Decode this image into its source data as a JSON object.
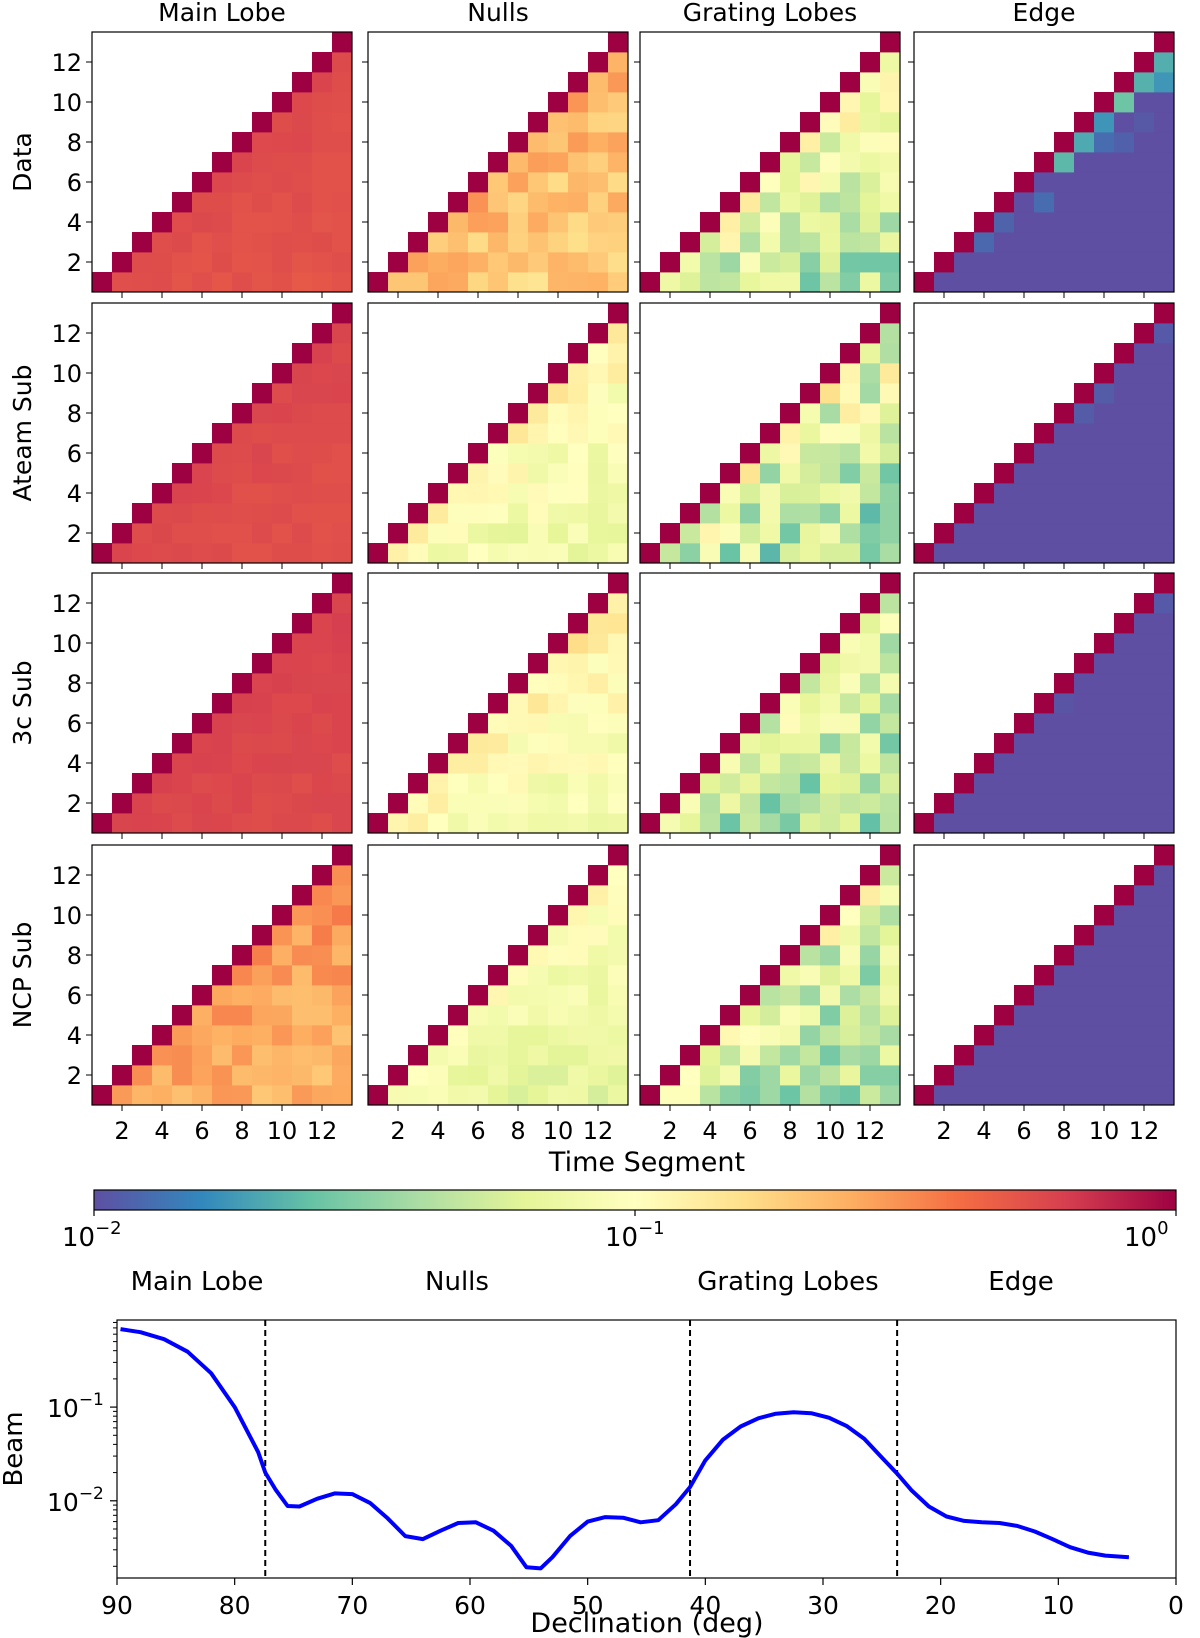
{
  "chart_data": [
    {
      "type": "heatmap",
      "title": "",
      "column_titles": [
        "Main Lobe",
        "Nulls",
        "Grating Lobes",
        "Edge"
      ],
      "row_labels": [
        "Data",
        "Ateam Sub",
        "3c Sub",
        "NCP Sub"
      ],
      "xlabel": "Time Segment",
      "ylabel": "",
      "x_ticks": [
        "2",
        "4",
        "6",
        "8",
        "10",
        "12"
      ],
      "y_ticks": [
        "2",
        "4",
        "6",
        "8",
        "10",
        "12"
      ],
      "grid_size": 13,
      "layout": "upper triangle: column index >= row index, diagonal cells saturated at 1",
      "panels_log10": [
        [
          {
            "base": -0.22,
            "slope": 0.02,
            "noise": 0.02
          },
          {
            "base": -0.55,
            "slope": 0.05,
            "noise": 0.12
          },
          {
            "base": -0.75,
            "slope": 0.18,
            "noise": 0.25
          },
          {
            "base": -1.1,
            "slope": 0.55,
            "noise": 0.3
          }
        ],
        [
          {
            "base": -0.22,
            "slope": 0.015,
            "noise": 0.02
          },
          {
            "base": -0.85,
            "slope": 0.08,
            "noise": 0.12
          },
          {
            "base": -0.95,
            "slope": 0.12,
            "noise": 0.3
          },
          {
            "base": -1.55,
            "slope": 0.4,
            "noise": 0.1
          }
        ],
        [
          {
            "base": -0.2,
            "slope": 0.015,
            "noise": 0.02
          },
          {
            "base": -0.8,
            "slope": 0.08,
            "noise": 0.1
          },
          {
            "base": -1.0,
            "slope": 0.12,
            "noise": 0.25
          },
          {
            "base": -1.6,
            "slope": 0.35,
            "noise": 0.08
          }
        ],
        [
          {
            "base": -0.45,
            "slope": 0.05,
            "noise": 0.1
          },
          {
            "base": -0.9,
            "slope": 0.08,
            "noise": 0.08
          },
          {
            "base": -1.0,
            "slope": 0.12,
            "noise": 0.25
          },
          {
            "base": -1.7,
            "slope": 0.35,
            "noise": 0.06
          }
        ]
      ],
      "colorbar": {
        "colormap": "Spectral_r",
        "scale": "log",
        "range": [
          0.01,
          1
        ],
        "tick_bases": [
          "10",
          "10",
          "10"
        ],
        "tick_exponents": [
          "−2",
          "−1",
          "0"
        ]
      }
    },
    {
      "type": "line",
      "title": "",
      "xlabel": "Declination (deg)",
      "ylabel": "Beam",
      "x_reversed": true,
      "xlim": [
        90,
        0
      ],
      "ylim": [
        0.0015,
        0.85
      ],
      "yscale": "log",
      "x_ticks": [
        "90",
        "80",
        "70",
        "60",
        "50",
        "40",
        "30",
        "20",
        "10",
        "0"
      ],
      "y_tick_bases": [
        "10",
        "10"
      ],
      "y_tick_exponents": [
        "−2",
        "−1"
      ],
      "region_labels": [
        "Main Lobe",
        "Nulls",
        "Grating Lobes",
        "Edge"
      ],
      "region_boundaries": [
        77.4,
        41.3,
        23.7
      ],
      "series": [
        {
          "color": "#0000ff",
          "x": [
            89.7,
            88,
            86,
            84,
            82,
            80,
            78,
            77.4,
            76.5,
            75.5,
            74.5,
            73,
            71.5,
            70,
            68.5,
            67,
            65.5,
            64,
            62.5,
            61,
            59.5,
            58,
            56.5,
            55.2,
            54,
            53,
            51.5,
            50,
            48.5,
            47,
            45.5,
            44,
            42.5,
            41.3,
            40,
            38.5,
            37,
            35.5,
            34,
            32.5,
            31,
            29.5,
            28,
            26.5,
            25,
            23.7,
            22.5,
            21,
            19.5,
            18,
            16.5,
            15,
            13.5,
            12,
            10.5,
            9,
            7.5,
            6,
            4
          ],
          "y": [
            0.68,
            0.63,
            0.53,
            0.39,
            0.23,
            0.1,
            0.033,
            0.02,
            0.013,
            0.0088,
            0.0087,
            0.0105,
            0.012,
            0.0118,
            0.0095,
            0.0065,
            0.0042,
            0.0039,
            0.0048,
            0.0058,
            0.0059,
            0.0048,
            0.0033,
            0.00195,
            0.0019,
            0.0025,
            0.0042,
            0.006,
            0.0067,
            0.0066,
            0.0059,
            0.0062,
            0.0092,
            0.014,
            0.027,
            0.045,
            0.062,
            0.076,
            0.085,
            0.088,
            0.086,
            0.077,
            0.063,
            0.046,
            0.029,
            0.0195,
            0.013,
            0.0087,
            0.0068,
            0.0061,
            0.0059,
            0.0058,
            0.0054,
            0.0047,
            0.0039,
            0.0032,
            0.0028,
            0.0026,
            0.0025
          ]
        }
      ]
    }
  ]
}
